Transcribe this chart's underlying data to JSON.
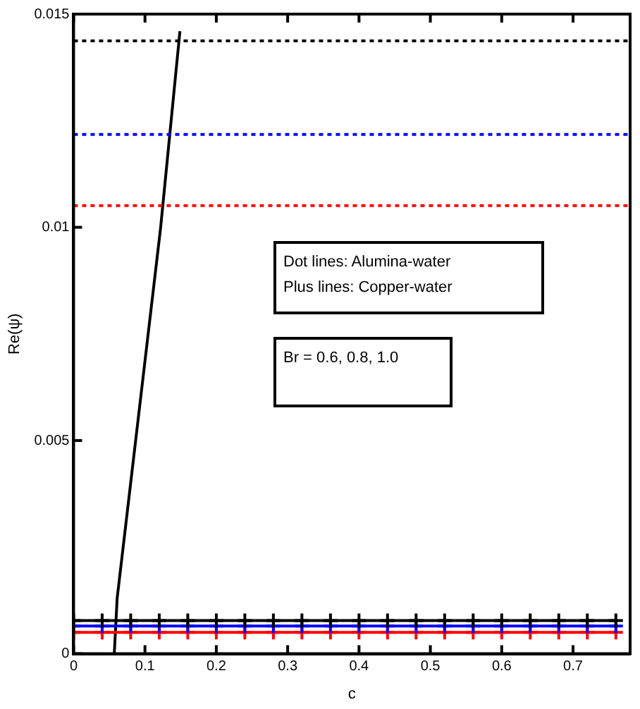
{
  "chart_data": {
    "type": "line",
    "xlabel": "c",
    "ylabel": "Re(ψ)",
    "xlim": [
      0,
      0.78
    ],
    "xticks": [
      0,
      0.1,
      0.2,
      0.3,
      0.4,
      0.5,
      0.6,
      0.7
    ],
    "ylim": [
      0,
      0.015
    ],
    "yticks": [
      0,
      0.005,
      0.01,
      0.015
    ],
    "grid": false,
    "legend": false,
    "series": [
      {
        "color": "#000000",
        "x": [
          0,
          0.78
        ],
        "values": [
          0.01437,
          0.01437
        ],
        "line_style": "dotted",
        "marker": "none"
      },
      {
        "color": "#0000ff",
        "x": [
          0,
          0.78
        ],
        "values": [
          0.01218,
          0.01218
        ],
        "line_style": "dotted",
        "marker": "none"
      },
      {
        "color": "#ff0000",
        "x": [
          0,
          0.78
        ],
        "values": [
          0.01051,
          0.01051
        ],
        "line_style": "dotted",
        "marker": "none"
      },
      {
        "color": "#000000",
        "x": [
          0,
          0.04,
          0.08,
          0.12,
          0.16,
          0.2,
          0.24,
          0.28,
          0.32,
          0.36,
          0.4,
          0.44,
          0.48,
          0.52,
          0.56,
          0.6,
          0.64,
          0.68,
          0.72,
          0.76
        ],
        "values": [
          0.00078,
          0.00078,
          0.00078,
          0.00078,
          0.00078,
          0.00078,
          0.00078,
          0.00078,
          0.00078,
          0.00078,
          0.00078,
          0.00078,
          0.00078,
          0.00078,
          0.00078,
          0.00078,
          0.00078,
          0.00078,
          0.00078,
          0.00078
        ],
        "line_style": "solid",
        "marker": "cross"
      },
      {
        "color": "#0000ff",
        "x": [
          0,
          0.04,
          0.08,
          0.12,
          0.16,
          0.2,
          0.24,
          0.28,
          0.32,
          0.36,
          0.4,
          0.44,
          0.48,
          0.52,
          0.56,
          0.6,
          0.64,
          0.68,
          0.72,
          0.76
        ],
        "values": [
          0.00065,
          0.00065,
          0.00065,
          0.00065,
          0.00065,
          0.00065,
          0.00065,
          0.00065,
          0.00065,
          0.00065,
          0.00065,
          0.00065,
          0.00065,
          0.00065,
          0.00065,
          0.00065,
          0.00065,
          0.00065,
          0.00065,
          0.00065
        ],
        "line_style": "solid",
        "marker": "cross"
      },
      {
        "color": "#ff0000",
        "x": [
          0,
          0.04,
          0.08,
          0.12,
          0.16,
          0.2,
          0.24,
          0.28,
          0.32,
          0.36,
          0.4,
          0.44,
          0.48,
          0.52,
          0.56,
          0.6,
          0.64,
          0.68,
          0.72,
          0.76
        ],
        "values": [
          0.0005,
          0.0005,
          0.0005,
          0.0005,
          0.0005,
          0.0005,
          0.0005,
          0.0005,
          0.0005,
          0.0005,
          0.0005,
          0.0005,
          0.0005,
          0.0005,
          0.0005,
          0.0005,
          0.0005,
          0.0005,
          0.0005,
          0.0005
        ],
        "line_style": "solid",
        "marker": "cross"
      },
      {
        "color": "#000000",
        "x": [
          0.057,
          0.061,
          0.122,
          0.149
        ],
        "values": [
          0,
          0.0013,
          0.01,
          0.0146
        ],
        "line_style": "solid",
        "marker": "none"
      }
    ],
    "annotations": [
      "Dot lines: Alumina-water",
      "Plus lines: Copper-water",
      "Br = 0.6, 0.8, 1.0"
    ]
  }
}
